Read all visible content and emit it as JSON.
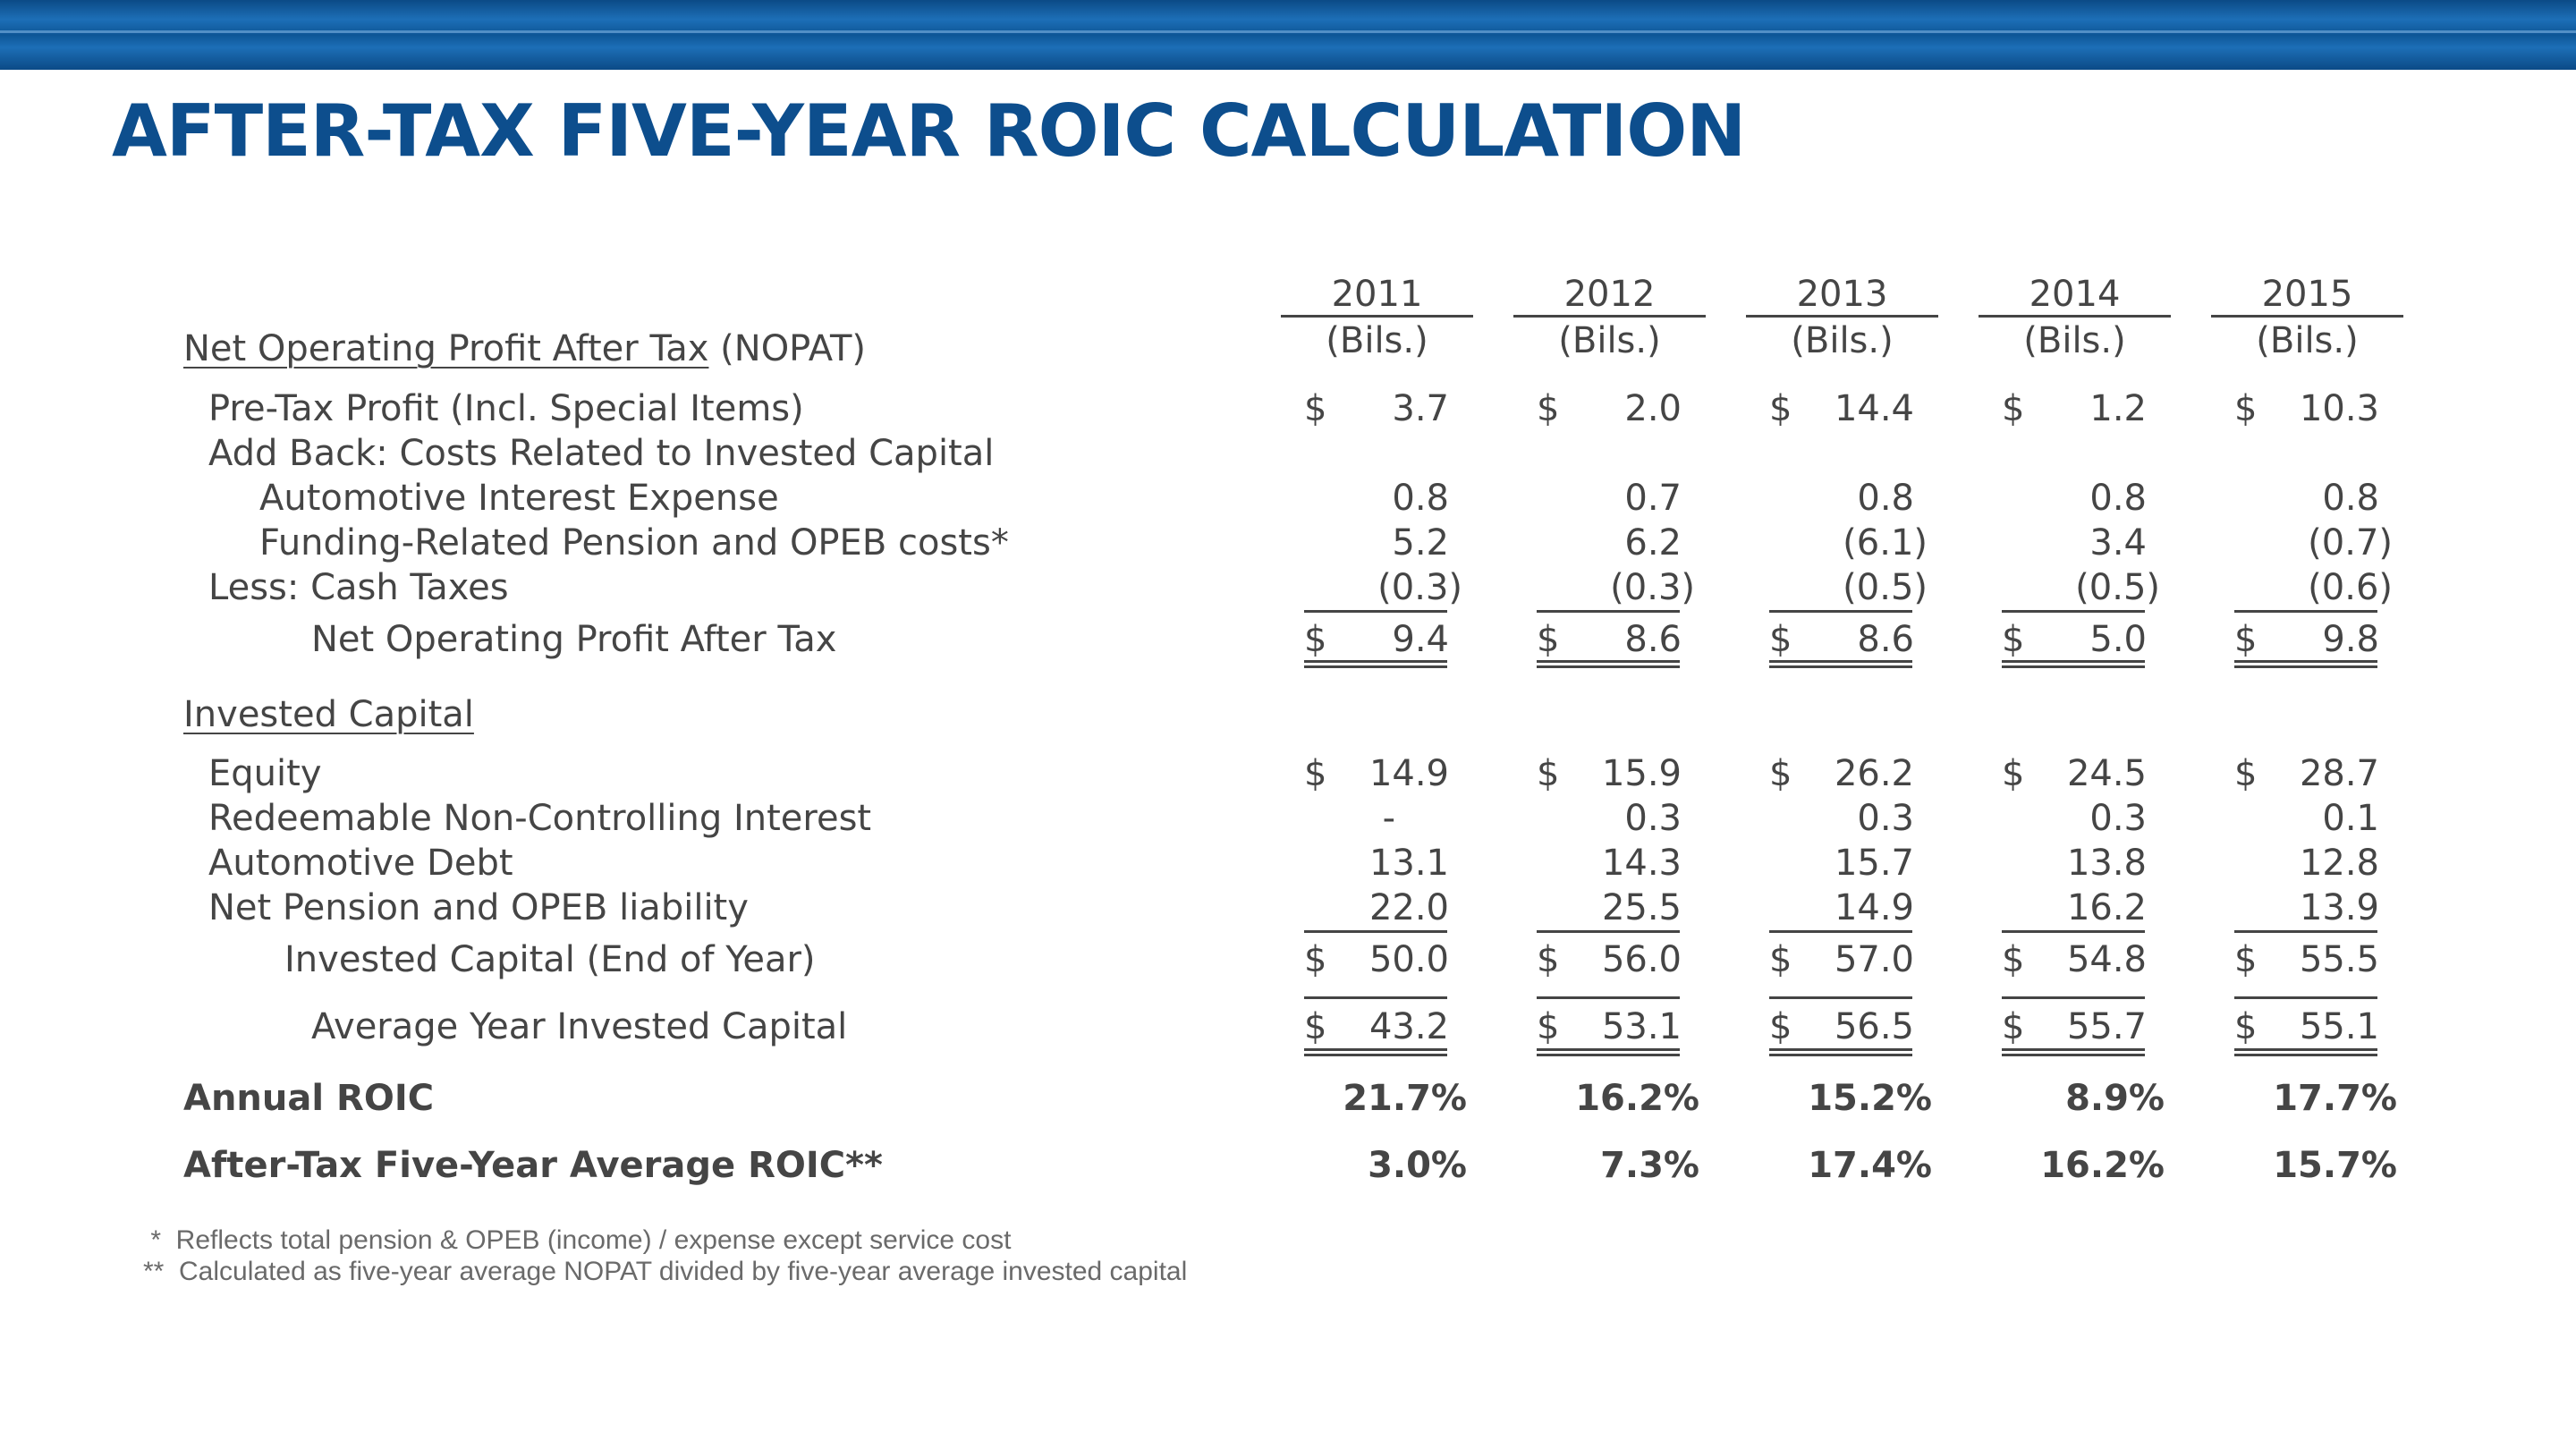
{
  "title": "AFTER-TAX FIVE-YEAR ROIC CALCULATION",
  "years": [
    "2011",
    "2012",
    "2013",
    "2014",
    "2015"
  ],
  "unit": "(Bils.)",
  "sections": {
    "nopat_heading_underlined": "Net Operating Profit After Tax",
    "nopat_heading_rest": " (NOPAT)",
    "invested_heading": "Invested Capital"
  },
  "currency": "$",
  "rows": {
    "pretax": {
      "label": "Pre-Tax Profit (Incl. Special Items)",
      "values": [
        "3.7",
        "2.0",
        "14.4",
        "1.2",
        "10.3"
      ]
    },
    "addback": {
      "label": "Add Back: Costs Related to Invested Capital"
    },
    "interest": {
      "label": "Automotive Interest Expense",
      "values": [
        "0.8",
        "0.7",
        "0.8",
        "0.8",
        "0.8"
      ]
    },
    "pension": {
      "label": "Funding-Related Pension and OPEB costs*",
      "values": [
        "5.2",
        "6.2",
        "(6.1)",
        "3.4",
        "(0.7)"
      ]
    },
    "taxes": {
      "label": "Less:  Cash Taxes",
      "values": [
        "(0.3)",
        "(0.3)",
        "(0.5)",
        "(0.5)",
        "(0.6)"
      ]
    },
    "nopat": {
      "label": "Net Operating Profit After Tax",
      "values": [
        "9.4",
        "8.6",
        "8.6",
        "5.0",
        "9.8"
      ]
    },
    "equity": {
      "label": "Equity",
      "values": [
        "14.9",
        "15.9",
        "26.2",
        "24.5",
        "28.7"
      ]
    },
    "redeemable": {
      "label": "Redeemable Non-Controlling Interest",
      "values": [
        "-",
        "0.3",
        "0.3",
        "0.3",
        "0.1"
      ]
    },
    "debt": {
      "label": "Automotive Debt",
      "values": [
        "13.1",
        "14.3",
        "15.7",
        "13.8",
        "12.8"
      ]
    },
    "netpension": {
      "label": "Net Pension and OPEB liability",
      "values": [
        "22.0",
        "25.5",
        "14.9",
        "16.2",
        "13.9"
      ]
    },
    "invested": {
      "label": "Invested Capital (End of Year)",
      "values": [
        "50.0",
        "56.0",
        "57.0",
        "54.8",
        "55.5"
      ]
    },
    "average": {
      "label": "Average Year Invested Capital",
      "values": [
        "43.2",
        "53.1",
        "56.5",
        "55.7",
        "55.1"
      ]
    },
    "roic": {
      "label": "Annual ROIC",
      "values": [
        "21.7%",
        "16.2%",
        "15.2%",
        "8.9%",
        "17.7%"
      ]
    },
    "fiveyear": {
      "label": "After-Tax Five-Year Average ROIC**",
      "values": [
        "3.0%",
        "7.3%",
        "17.4%",
        "16.2%",
        "15.7%"
      ]
    }
  },
  "footnotes": [
    " *  Reflects total pension & OPEB (income) / expense except service cost",
    "**  Calculated as five-year average NOPAT divided by five-year average invested capital"
  ]
}
